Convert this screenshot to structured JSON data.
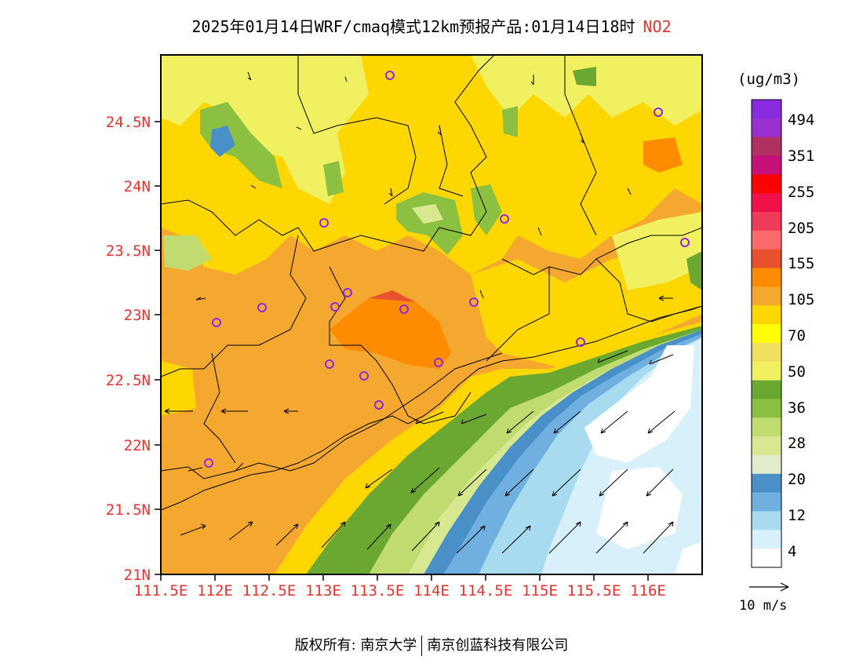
{
  "title": {
    "main": "2025年01月14日WRF/cmaq模式12km预报产品:01月14日18时",
    "species": "NO2"
  },
  "lat_labels": [
    "24.5N",
    "24N",
    "23.5N",
    "23N",
    "22.5N",
    "22N",
    "21.5N",
    "21N"
  ],
  "lon_labels": [
    "111.5E",
    "112E",
    "112.5E",
    "113E",
    "113.5E",
    "114E",
    "114.5E",
    "115E",
    "115.5E",
    "116E"
  ],
  "colorbar": {
    "unit": "(ug/m3)",
    "colors_top_to_bottom": [
      "#8a2be2",
      "#9b30d0",
      "#b03060",
      "#c8107a",
      "#ff0000",
      "#f0104c",
      "#f03a5a",
      "#ff6a6a",
      "#e8502e",
      "#ff8c00",
      "#f5a830",
      "#ffd700",
      "#ffff00",
      "#f0e060",
      "#f0f060",
      "#6aa832",
      "#8cc040",
      "#c0dc70",
      "#d8e890",
      "#e0eccc",
      "#4a90c8",
      "#70b0e0",
      "#a8daf0",
      "#d8f0fa",
      "#ffffff"
    ],
    "labels": [
      "494",
      "351",
      "255",
      "205",
      "155",
      "105",
      "70",
      "50",
      "36",
      "28",
      "20",
      "12",
      "4"
    ]
  },
  "wind_reference": "10 m/s",
  "copyright": {
    "left": "版权所有: 南京大学",
    "right": "南京创蓝科技有限公司"
  }
}
